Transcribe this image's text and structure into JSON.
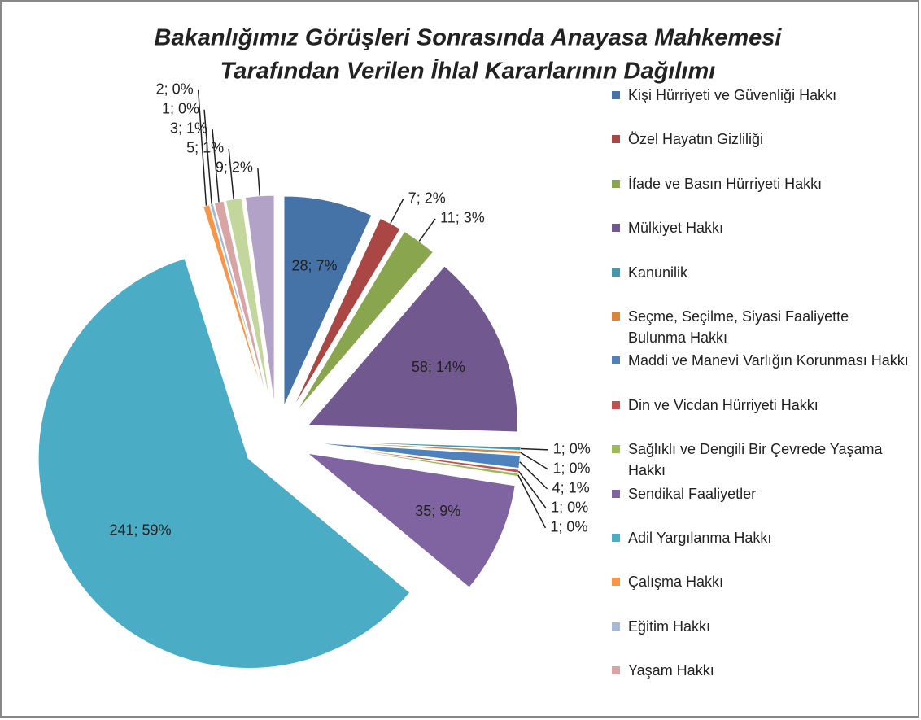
{
  "chart_data": {
    "type": "pie",
    "title": [
      "Bakanlığımız Görüşleri Sonrasında Anayasa Mahkemesi",
      "Tarafından Verilen İhlal Kararlarının Dağılımı"
    ],
    "categories": [
      "Kişi Hürriyeti ve Güvenliği Hakkı",
      "Özel Hayatın Gizliliği",
      "İfade ve Basın Hürriyeti Hakkı",
      "Mülkiyet Hakkı",
      "Kanunilik",
      "Seçme, Seçilme, Siyasi Faaliyette Bulunma Hakkı",
      "Maddi ve Manevi Varlığın Korunması Hakkı",
      "Din ve Vicdan Hürriyeti Hakkı",
      "Sağlıklı ve Dengili Bir Çevrede Yaşama Hakkı",
      "Sendikal Faaliyetler",
      "Adil Yargılanma Hakkı",
      "Çalışma Hakkı",
      "Eğitim Hakkı",
      "Yaşam Hakkı",
      null,
      null
    ],
    "values": [
      28,
      7,
      11,
      58,
      1,
      1,
      4,
      1,
      1,
      35,
      241,
      2,
      1,
      3,
      5,
      9
    ],
    "value_labels": [
      "28; 7%",
      "7; 2%",
      "11; 3%",
      "58; 14%",
      "1; 0%",
      "1; 0%",
      "4; 1%",
      "1; 0%",
      "1; 0%",
      "35; 9%",
      "241; 59%",
      "2; 0%",
      "1; 0%",
      "3; 1%",
      "5; 1%",
      "9; 2%"
    ],
    "colors": [
      "#4572a7",
      "#aa4643",
      "#89a54e",
      "#71588f",
      "#4198af",
      "#db843d",
      "#4f81bd",
      "#c0504d",
      "#9bbb59",
      "#8064a2",
      "#4bacc6",
      "#f79646",
      "#a5b8d8",
      "#d9a5a4",
      "#c3d69b",
      "#b3a2c7"
    ],
    "legend": "right"
  }
}
